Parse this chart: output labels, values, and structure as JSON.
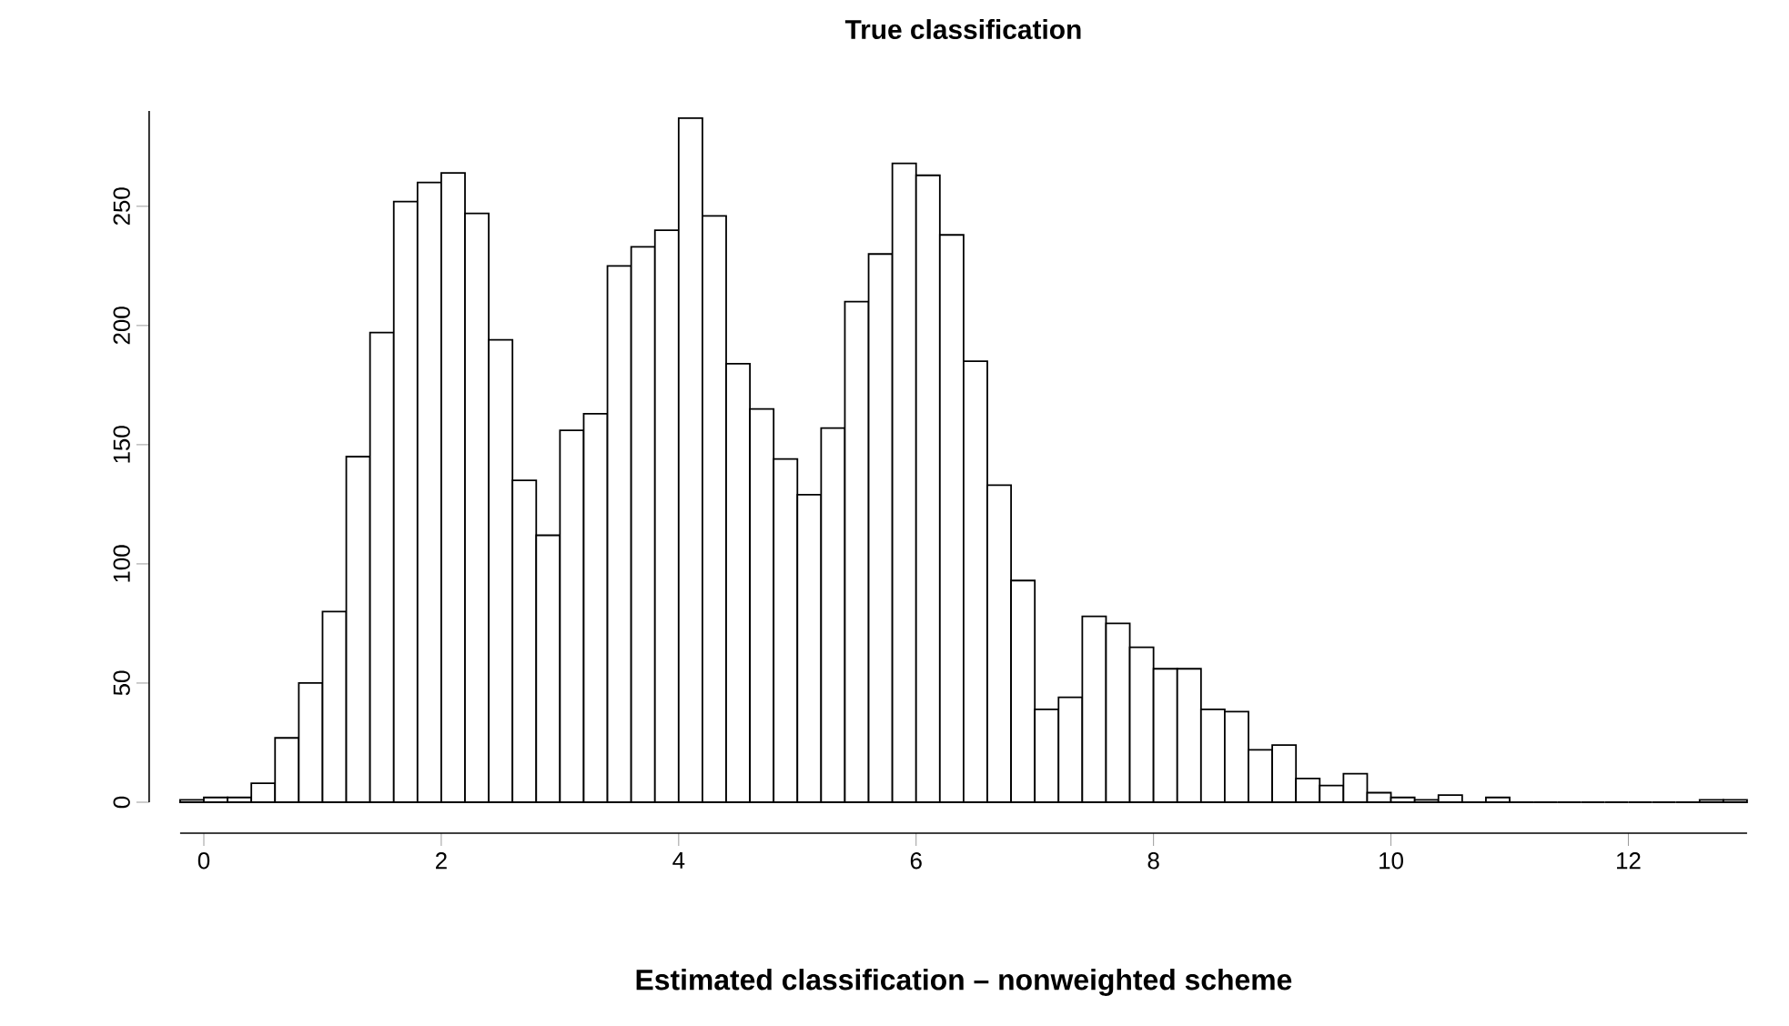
{
  "chart_data": {
    "type": "histogram",
    "title": "True classification",
    "xlabel": "Estimated classification – nonweighted scheme",
    "bins": [
      -0.2,
      0,
      0.2,
      0.4,
      0.6,
      0.8,
      1,
      1.2,
      1.4,
      1.6,
      1.8,
      2,
      2.2,
      2.4,
      2.6,
      2.8,
      3,
      3.2,
      3.4,
      3.6,
      3.8,
      4,
      4.2,
      4.4,
      4.6,
      4.8,
      5,
      5.2,
      5.4,
      5.6,
      5.8,
      6,
      6.2,
      6.4,
      6.6,
      6.8,
      7,
      7.2,
      7.4,
      7.6,
      7.8,
      8,
      8.2,
      8.4,
      8.6,
      8.8,
      9,
      9.2,
      9.4,
      9.6,
      9.8,
      10,
      10.2,
      10.4,
      10.6,
      10.8,
      11,
      11.2,
      11.4,
      11.6,
      11.8,
      12,
      12.2,
      12.4,
      12.6,
      12.8,
      13
    ],
    "values": [
      1,
      2,
      2,
      8,
      27,
      50,
      80,
      145,
      197,
      252,
      260,
      264,
      247,
      194,
      135,
      112,
      156,
      163,
      225,
      233,
      240,
      287,
      246,
      184,
      165,
      144,
      129,
      157,
      210,
      230,
      268,
      263,
      238,
      185,
      133,
      93,
      39,
      44,
      78,
      75,
      65,
      56,
      56,
      39,
      38,
      22,
      24,
      10,
      7,
      12,
      4,
      2,
      1,
      3,
      0,
      2,
      0,
      0,
      0,
      0,
      0,
      0,
      0,
      0,
      1,
      1
    ],
    "xlim": [
      -0.2,
      13
    ],
    "ylim": [
      0,
      290
    ],
    "xticks": [
      0,
      2,
      4,
      6,
      8,
      10,
      12
    ],
    "yticks": [
      0,
      50,
      100,
      150,
      200,
      250
    ]
  }
}
